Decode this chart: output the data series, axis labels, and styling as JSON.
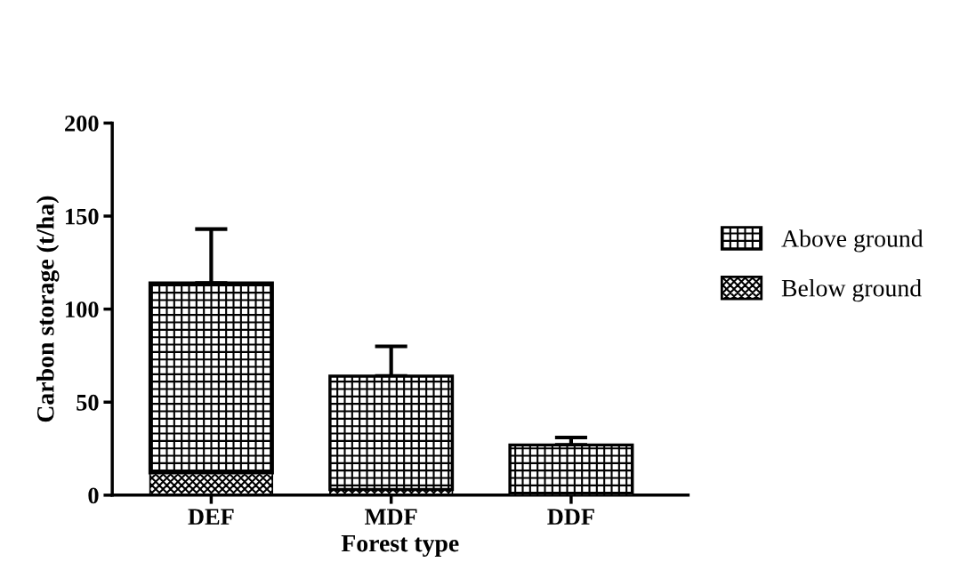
{
  "chart_data": {
    "type": "bar",
    "xlabel": "Forest type",
    "ylabel": "Carbon storage (t/ha)",
    "categories": [
      "DEF",
      "MDF",
      "DDF"
    ],
    "stacked": true,
    "series": [
      {
        "name": "Below ground",
        "color": "#000000",
        "values": [
          12,
          3,
          null
        ],
        "errors": [
          [
            12,
            15
          ],
          [
            3,
            6
          ],
          null
        ]
      },
      {
        "name": "Above ground",
        "color": "#000000",
        "values": [
          102,
          61,
          27
        ],
        "errors": [
          [
            114,
            143
          ],
          [
            64,
            80
          ],
          [
            27,
            31
          ]
        ]
      }
    ],
    "ylim": [
      0,
      200
    ],
    "yticks": [
      0,
      50,
      100,
      150,
      200
    ],
    "grid": false,
    "legend": "right"
  }
}
